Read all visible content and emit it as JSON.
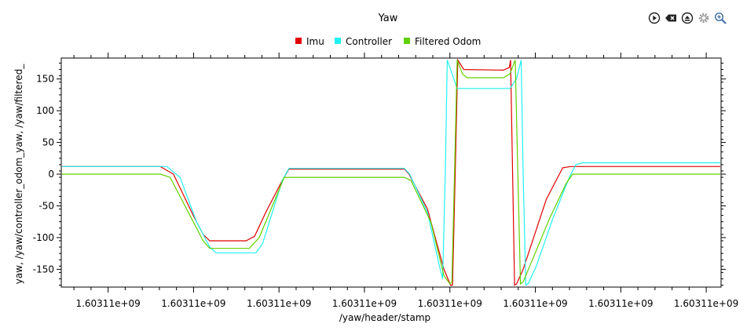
{
  "toolbar": {
    "icons": [
      "play-icon",
      "clear-icon",
      "eject-icon",
      "settings-icon",
      "zoom-icon"
    ]
  },
  "chart_data": {
    "type": "line",
    "title": "Yaw",
    "xlabel": "/yaw/header/stamp",
    "ylabel": "yaw, /yaw/controller_odom_yaw, /yaw/filtered_",
    "x_tick_labels": [
      "1.60311e+09",
      "1.60311e+09",
      "1.60311e+09",
      "1.60311e+09",
      "1.60311e+09",
      "1.60311e+09",
      "1.60311e+09",
      "1.60311e+09"
    ],
    "y_ticks": [
      150,
      100,
      50,
      0,
      -50,
      -100,
      -150
    ],
    "ylim": [
      -178,
      183
    ],
    "xlim": [
      0,
      1
    ],
    "grid": false,
    "legend_position": "top-center",
    "series": [
      {
        "name": "Imu",
        "color": "#e00000",
        "points": [
          [
            0.0,
            12
          ],
          [
            0.15,
            12
          ],
          [
            0.17,
            0
          ],
          [
            0.2,
            -65
          ],
          [
            0.215,
            -95
          ],
          [
            0.225,
            -105
          ],
          [
            0.28,
            -105
          ],
          [
            0.293,
            -98
          ],
          [
            0.31,
            -60
          ],
          [
            0.335,
            -10
          ],
          [
            0.345,
            8
          ],
          [
            0.52,
            8
          ],
          [
            0.527,
            0
          ],
          [
            0.555,
            -55
          ],
          [
            0.58,
            -150
          ],
          [
            0.59,
            -175
          ],
          [
            0.593,
            -175
          ],
          [
            0.597,
            0
          ],
          [
            0.601,
            180
          ],
          [
            0.61,
            165
          ],
          [
            0.67,
            164
          ],
          [
            0.679,
            168
          ],
          [
            0.681,
            180
          ],
          [
            0.684,
            0
          ],
          [
            0.687,
            -175
          ],
          [
            0.69,
            -173
          ],
          [
            0.7,
            -150
          ],
          [
            0.735,
            -40
          ],
          [
            0.76,
            10
          ],
          [
            0.772,
            12
          ],
          [
            1.0,
            12
          ]
        ]
      },
      {
        "name": "Controller",
        "color": "#20f0f0",
        "points": [
          [
            0.0,
            12
          ],
          [
            0.16,
            12
          ],
          [
            0.18,
            -5
          ],
          [
            0.205,
            -75
          ],
          [
            0.225,
            -115
          ],
          [
            0.235,
            -124
          ],
          [
            0.295,
            -124
          ],
          [
            0.305,
            -110
          ],
          [
            0.32,
            -60
          ],
          [
            0.335,
            -10
          ],
          [
            0.345,
            9
          ],
          [
            0.52,
            9
          ],
          [
            0.528,
            0
          ],
          [
            0.555,
            -60
          ],
          [
            0.572,
            -140
          ],
          [
            0.578,
            -165
          ],
          [
            0.582,
            0
          ],
          [
            0.585,
            180
          ],
          [
            0.595,
            150
          ],
          [
            0.6,
            135
          ],
          [
            0.68,
            135
          ],
          [
            0.69,
            150
          ],
          [
            0.697,
            180
          ],
          [
            0.7,
            0
          ],
          [
            0.704,
            -175
          ],
          [
            0.708,
            -172
          ],
          [
            0.72,
            -145
          ],
          [
            0.745,
            -70
          ],
          [
            0.77,
            -5
          ],
          [
            0.78,
            15
          ],
          [
            0.79,
            18
          ],
          [
            1.0,
            18
          ]
        ]
      },
      {
        "name": "Filtered Odom",
        "color": "#60d000",
        "points": [
          [
            0.0,
            0
          ],
          [
            0.15,
            0
          ],
          [
            0.165,
            -5
          ],
          [
            0.2,
            -75
          ],
          [
            0.215,
            -105
          ],
          [
            0.225,
            -117
          ],
          [
            0.285,
            -117
          ],
          [
            0.3,
            -100
          ],
          [
            0.32,
            -50
          ],
          [
            0.338,
            -5
          ],
          [
            0.36,
            -5
          ],
          [
            0.52,
            -5
          ],
          [
            0.53,
            -10
          ],
          [
            0.56,
            -75
          ],
          [
            0.58,
            -160
          ],
          [
            0.589,
            -173
          ],
          [
            0.592,
            -170
          ],
          [
            0.596,
            0
          ],
          [
            0.6,
            180
          ],
          [
            0.608,
            158
          ],
          [
            0.615,
            152
          ],
          [
            0.67,
            152
          ],
          [
            0.68,
            158
          ],
          [
            0.688,
            180
          ],
          [
            0.692,
            0
          ],
          [
            0.696,
            -173
          ],
          [
            0.7,
            -170
          ],
          [
            0.71,
            -145
          ],
          [
            0.74,
            -70
          ],
          [
            0.765,
            -15
          ],
          [
            0.775,
            0
          ],
          [
            1.0,
            0
          ]
        ]
      }
    ]
  }
}
